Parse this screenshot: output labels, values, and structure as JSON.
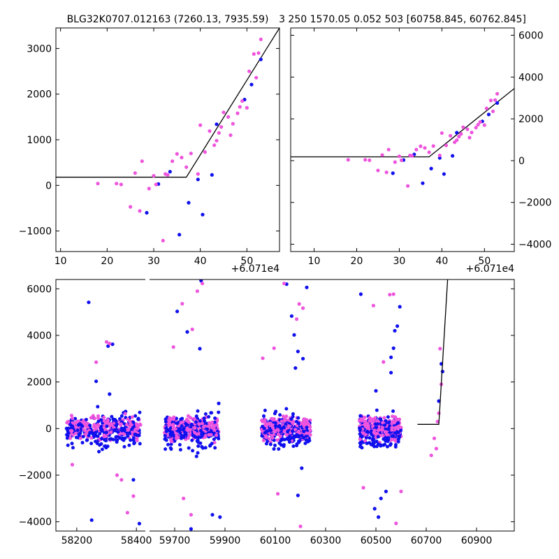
{
  "chart_data": [
    {
      "type": "scatter",
      "title": "BLG32K0707.012163 (7260.13, 7935.59)",
      "x_offset_label": "+6.071e4",
      "xlim": [
        9,
        57
      ],
      "ylim": [
        -1450,
        3450
      ],
      "xticks": [
        10,
        20,
        30,
        40,
        50
      ],
      "yticks": [
        -1000,
        0,
        1000,
        2000,
        3000
      ],
      "y_axis_side": "left",
      "model_line": [
        [
          9,
          180
        ],
        [
          37,
          180
        ],
        [
          57,
          3450
        ]
      ],
      "series": [
        {
          "color": "#1010ee",
          "points": [
            [
              28.5,
              -600
            ],
            [
              31,
              30
            ],
            [
              33.5,
              300
            ],
            [
              35.5,
              -1080
            ],
            [
              37.5,
              -380
            ],
            [
              39.5,
              130
            ],
            [
              40.5,
              -640
            ],
            [
              42.5,
              230
            ],
            [
              43.5,
              1340
            ],
            [
              49.5,
              1880
            ],
            [
              51,
              2210
            ],
            [
              53,
              2760
            ]
          ]
        },
        {
          "color": "#ee55dd",
          "points": [
            [
              18,
              40
            ],
            [
              22,
              40
            ],
            [
              23,
              20
            ],
            [
              25,
              -470
            ],
            [
              26,
              270
            ],
            [
              27,
              -560
            ],
            [
              27.5,
              530
            ],
            [
              29,
              -70
            ],
            [
              30,
              210
            ],
            [
              30.5,
              20
            ],
            [
              32,
              -1210
            ],
            [
              32.5,
              250
            ],
            [
              33,
              230
            ],
            [
              34,
              530
            ],
            [
              35,
              690
            ],
            [
              36,
              610
            ],
            [
              37,
              400
            ],
            [
              38,
              700
            ],
            [
              39.5,
              250
            ],
            [
              40,
              1320
            ],
            [
              41,
              730
            ],
            [
              42,
              1190
            ],
            [
              43,
              880
            ],
            [
              43.5,
              980
            ],
            [
              44,
              1150
            ],
            [
              44.5,
              1280
            ],
            [
              45,
              1600
            ],
            [
              46,
              1500
            ],
            [
              46.5,
              1100
            ],
            [
              47,
              1350
            ],
            [
              48,
              1580
            ],
            [
              48.5,
              1720
            ],
            [
              49,
              1850
            ],
            [
              50,
              1700
            ],
            [
              50.5,
              2500
            ],
            [
              51.5,
              2880
            ],
            [
              52,
              2360
            ],
            [
              52.5,
              2900
            ],
            [
              53,
              3200
            ]
          ]
        }
      ]
    },
    {
      "type": "scatter",
      "title": "3 250 1570.05 0.052 503 [60758.845, 60762.845]",
      "x_offset_label": "+6.071e4",
      "xlim": [
        4.5,
        57
      ],
      "ylim": [
        -4350,
        6350
      ],
      "xticks": [
        10,
        20,
        30,
        40,
        50
      ],
      "yticks": [
        -4000,
        -2000,
        0,
        2000,
        4000,
        6000
      ],
      "y_axis_side": "right",
      "model_line": [
        [
          4.5,
          180
        ],
        [
          37,
          180
        ],
        [
          57,
          3450
        ]
      ],
      "series": [
        {
          "color": "#1010ee",
          "points": [
            [
              28.5,
              -600
            ],
            [
              31,
              30
            ],
            [
              33.5,
              300
            ],
            [
              35.5,
              -1080
            ],
            [
              37.5,
              -380
            ],
            [
              39.5,
              130
            ],
            [
              40.5,
              -640
            ],
            [
              42.5,
              230
            ],
            [
              43.5,
              1340
            ],
            [
              49.5,
              1880
            ],
            [
              51,
              2210
            ],
            [
              53,
              2760
            ]
          ]
        },
        {
          "color": "#ee55dd",
          "points": [
            [
              18,
              40
            ],
            [
              22,
              40
            ],
            [
              23,
              20
            ],
            [
              25,
              -470
            ],
            [
              26,
              270
            ],
            [
              27,
              -560
            ],
            [
              27.5,
              530
            ],
            [
              29,
              -70
            ],
            [
              30,
              210
            ],
            [
              30.5,
              20
            ],
            [
              32,
              -1210
            ],
            [
              32.5,
              250
            ],
            [
              33,
              230
            ],
            [
              34,
              530
            ],
            [
              35,
              690
            ],
            [
              36,
              610
            ],
            [
              37,
              400
            ],
            [
              38,
              700
            ],
            [
              39.5,
              250
            ],
            [
              40,
              1320
            ],
            [
              41,
              730
            ],
            [
              42,
              1190
            ],
            [
              43,
              880
            ],
            [
              43.5,
              980
            ],
            [
              44,
              1150
            ],
            [
              44.5,
              1280
            ],
            [
              45,
              1600
            ],
            [
              46,
              1500
            ],
            [
              46.5,
              1100
            ],
            [
              47,
              1350
            ],
            [
              48,
              1580
            ],
            [
              48.5,
              1720
            ],
            [
              49,
              1850
            ],
            [
              50,
              1700
            ],
            [
              50.5,
              2500
            ],
            [
              51.5,
              2880
            ],
            [
              52,
              2360
            ],
            [
              52.5,
              2900
            ],
            [
              53,
              3200
            ]
          ]
        }
      ]
    },
    {
      "type": "scatter",
      "title": "",
      "left_panel": {
        "xlim": [
          58130,
          58430
        ],
        "xticks": [
          58200,
          58400
        ]
      },
      "right_panel": {
        "xlim": [
          59600,
          61050
        ],
        "xticks": [
          59700,
          59900,
          60100,
          60300,
          60500,
          60700,
          60900
        ]
      },
      "ylim": [
        -4400,
        6400
      ],
      "yticks": [
        -4000,
        -2000,
        0,
        2000,
        4000,
        6000
      ],
      "model_line": [
        [
          60665,
          180
        ],
        [
          60750,
          180
        ],
        [
          60785,
          6400
        ]
      ],
      "seasons": [
        {
          "x_range": [
            58165,
            58415
          ],
          "color_split": 0.55
        },
        {
          "x_range": [
            59660,
            59875
          ],
          "color_split": 0.5
        },
        {
          "x_range": [
            60045,
            60240
          ],
          "color_split": 0.5
        },
        {
          "x_range": [
            60435,
            60600
          ],
          "color_split": 0.5
        }
      ],
      "series": [
        {
          "color": "#1010ee",
          "points": [
            [
              58240,
              5420
            ],
            [
              58265,
              2030
            ],
            [
              58305,
              3540
            ],
            [
              58320,
              3620
            ],
            [
              58310,
              1480
            ],
            [
              58390,
              -2200
            ],
            [
              58410,
              -4080
            ],
            [
              58250,
              -3930
            ],
            [
              59710,
              5030
            ],
            [
              59750,
              4150
            ],
            [
              59805,
              6350
            ],
            [
              59800,
              3430
            ],
            [
              59875,
              1080
            ],
            [
              59850,
              -3700
            ],
            [
              59880,
              -3800
            ],
            [
              59765,
              -4310
            ],
            [
              60145,
              6200
            ],
            [
              60165,
              4830
            ],
            [
              60175,
              4020
            ],
            [
              60190,
              3310
            ],
            [
              60210,
              3000
            ],
            [
              60225,
              6060
            ],
            [
              60180,
              2600
            ],
            [
              60205,
              -1700
            ],
            [
              60190,
              -2870
            ],
            [
              60440,
              5770
            ],
            [
              60500,
              1620
            ],
            [
              60560,
              3060
            ],
            [
              60575,
              4200
            ],
            [
              60595,
              5230
            ],
            [
              60585,
              4400
            ],
            [
              60570,
              3450
            ],
            [
              60560,
              2400
            ],
            [
              60540,
              -2700
            ],
            [
              60520,
              -3000
            ],
            [
              60510,
              -3800
            ],
            [
              60495,
              -3440
            ],
            [
              60750,
              1180
            ],
            [
              60760,
              2780
            ],
            [
              60765,
              2450
            ]
          ]
        },
        {
          "color": "#ee55dd",
          "points": [
            [
              58185,
              -1550
            ],
            [
              58265,
              2850
            ],
            [
              58300,
              3720
            ],
            [
              58310,
              3650
            ],
            [
              58335,
              -2000
            ],
            [
              58350,
              -2200
            ],
            [
              58390,
              -2900
            ],
            [
              58370,
              -3610
            ],
            [
              59695,
              3500
            ],
            [
              59730,
              5360
            ],
            [
              59770,
              4260
            ],
            [
              59790,
              5900
            ],
            [
              59810,
              6230
            ],
            [
              59765,
              -3700
            ],
            [
              59735,
              -3000
            ],
            [
              60050,
              3020
            ],
            [
              60095,
              3450
            ],
            [
              60110,
              -2800
            ],
            [
              60135,
              6230
            ],
            [
              60185,
              4700
            ],
            [
              60195,
              5350
            ],
            [
              60200,
              -4200
            ],
            [
              60210,
              5170
            ],
            [
              60450,
              -2540
            ],
            [
              60490,
              5280
            ],
            [
              60530,
              2860
            ],
            [
              60555,
              5750
            ],
            [
              60570,
              5770
            ],
            [
              60600,
              -2700
            ],
            [
              60580,
              -4070
            ],
            [
              60720,
              -1150
            ],
            [
              60740,
              -860
            ],
            [
              60745,
              300
            ],
            [
              60755,
              3430
            ],
            [
              60760,
              1900
            ],
            [
              60750,
              660
            ],
            [
              60732,
              -420
            ]
          ]
        }
      ]
    }
  ]
}
